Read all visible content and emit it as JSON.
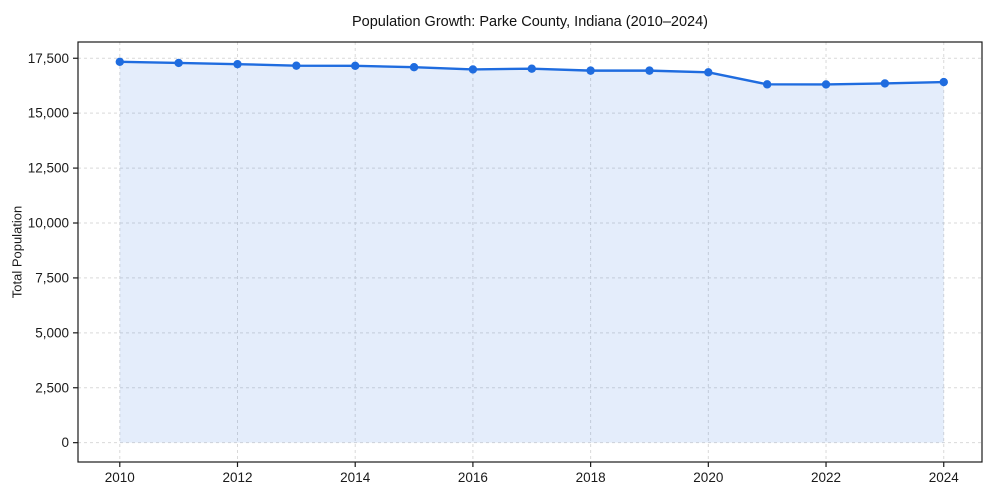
{
  "chart_data": {
    "type": "area",
    "title": "Population Growth: Parke County, Indiana (2010–2024)",
    "xlabel": "",
    "ylabel": "Total Population",
    "series": [
      {
        "name": "Total Population",
        "x": [
          2010,
          2011,
          2012,
          2013,
          2014,
          2015,
          2016,
          2017,
          2018,
          2019,
          2020,
          2021,
          2022,
          2023,
          2024
        ],
        "values": [
          17339,
          17286,
          17231,
          17163,
          17157,
          17093,
          16992,
          17025,
          16937,
          16937,
          16860,
          16312,
          16309,
          16354,
          16415
        ]
      }
    ],
    "xlim": [
      2009.29,
      2024.65
    ],
    "ylim": [
      -880,
      18240
    ],
    "fill_baseline": 0,
    "x_ticks": [
      {
        "value": 2010,
        "label": "2010"
      },
      {
        "value": 2012,
        "label": "2012"
      },
      {
        "value": 2014,
        "label": "2014"
      },
      {
        "value": 2016,
        "label": "2016"
      },
      {
        "value": 2018,
        "label": "2018"
      },
      {
        "value": 2020,
        "label": "2020"
      },
      {
        "value": 2022,
        "label": "2022"
      },
      {
        "value": 2024,
        "label": "2024"
      }
    ],
    "y_ticks": [
      {
        "value": 0,
        "label": "0"
      },
      {
        "value": 2500,
        "label": "2,500"
      },
      {
        "value": 5000,
        "label": "5,000"
      },
      {
        "value": 7500,
        "label": "7,500"
      },
      {
        "value": 10000,
        "label": "10,000"
      },
      {
        "value": 12500,
        "label": "12,500"
      },
      {
        "value": 15000,
        "label": "15,000"
      },
      {
        "value": 17500,
        "label": "17,500"
      }
    ],
    "grid": true,
    "grid_style": "dashed",
    "legend_position": "none",
    "colors": {
      "line": "#1f6cdf",
      "marker": "#1f6cdf",
      "fill": "rgba(31, 108, 223, 0.12)",
      "grid": "#d9d9d9",
      "spine": "#1a1a1a",
      "tick_text": "#1a1a1a",
      "title_text": "#111111",
      "background": "#ffffff"
    }
  }
}
